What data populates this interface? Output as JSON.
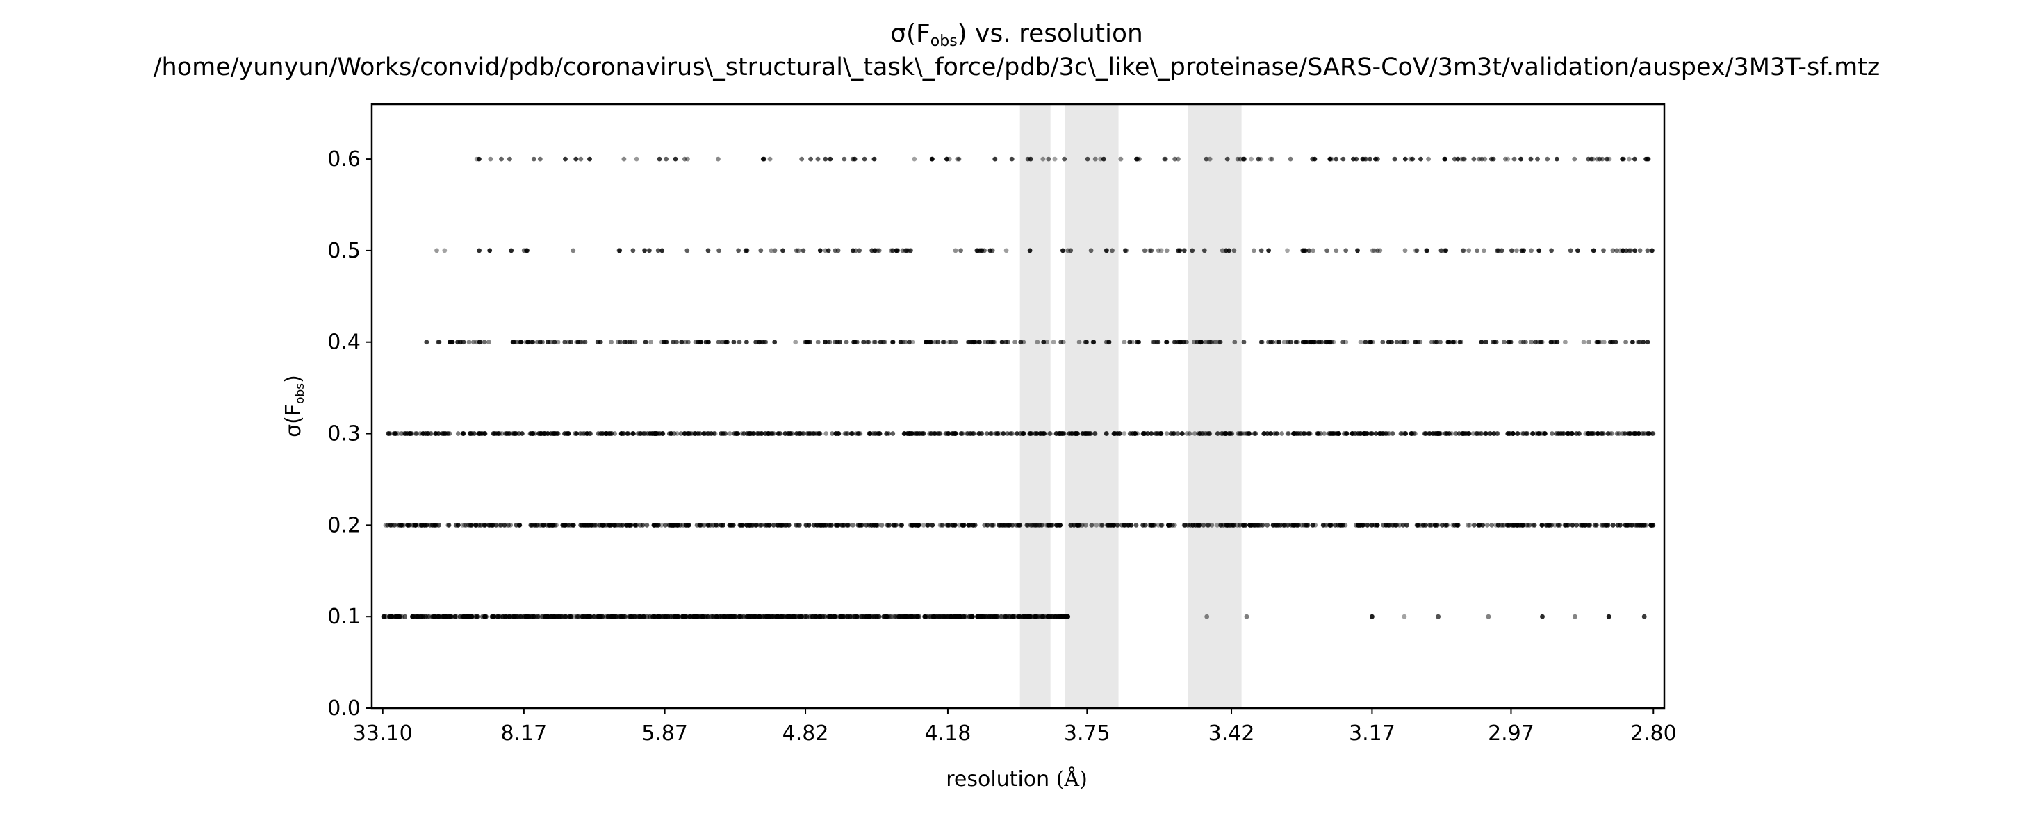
{
  "chart_data": {
    "type": "scatter",
    "title": {
      "prefix": "σ(F",
      "subscript": "obs",
      "suffix": ") vs. resolution"
    },
    "subtitle": "/home/yunyun/Works/convid/pdb/coronavirus\\_structural\\_task\\_force/pdb/3c\\_like\\_proteinase/SARS-CoV/3m3t/validation/auspex/3M3T-sf.mtz",
    "xlabel": {
      "text": "resolution",
      "unit": "(Å)"
    },
    "ylabel": {
      "prefix": "σ(F",
      "subscript": "obs",
      "suffix": ")"
    },
    "x_axis": {
      "scale": "reciprocal-square (1/d²)",
      "tick_labels": [
        "33.10",
        "8.17",
        "5.87",
        "4.82",
        "4.18",
        "3.75",
        "3.42",
        "3.17",
        "2.97",
        "2.80"
      ],
      "range": [
        33.1,
        2.8
      ]
    },
    "y_axis": {
      "tick_labels": [
        "0.0",
        "0.1",
        "0.2",
        "0.3",
        "0.4",
        "0.5",
        "0.6"
      ],
      "ylim": [
        0.0,
        0.66
      ]
    },
    "ice_ring_bands": [
      {
        "from": 3.94,
        "to": 3.85
      },
      {
        "from": 3.81,
        "to": 3.67
      },
      {
        "from": 3.51,
        "to": 3.4
      }
    ],
    "series": [
      {
        "y": 0.1,
        "from": 33.1,
        "to": 3.8,
        "density": "dense",
        "sparse_points": [
          3.47,
          3.39,
          3.17,
          3.12,
          3.07,
          3.0,
          2.93,
          2.89,
          2.85,
          2.81
        ]
      },
      {
        "y": 0.2,
        "from": 33.1,
        "to": 2.8,
        "density": "dense"
      },
      {
        "y": 0.3,
        "from": 28.0,
        "to": 2.8,
        "density": "dense"
      },
      {
        "y": 0.4,
        "from": 14.0,
        "to": 2.8,
        "density": "medium"
      },
      {
        "y": 0.5,
        "from": 33.1,
        "to": 2.8,
        "density": "sparse"
      },
      {
        "y": 0.6,
        "from": 11.0,
        "to": 2.8,
        "density": "sparse"
      }
    ],
    "marker_color": "#000000",
    "band_color": "#e8e8e8",
    "grid": false,
    "legend": "none"
  }
}
